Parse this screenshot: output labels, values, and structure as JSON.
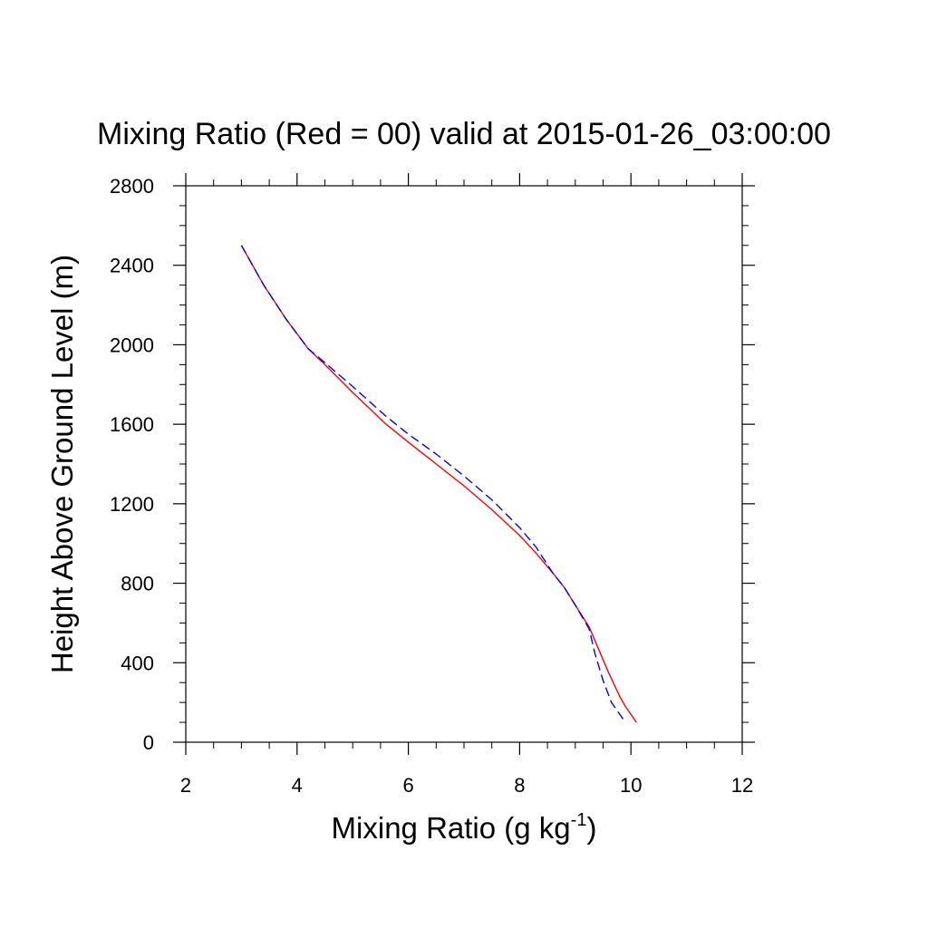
{
  "chart_data": {
    "type": "line",
    "title": "Mixing Ratio (Red = 00) valid at 2015-01-26_03:00:00",
    "xlabel": "Mixing Ratio (g kg",
    "xlabel_superscript": "-1",
    "xlabel_suffix": ")",
    "ylabel": "Height Above Ground Level (m)",
    "xlim": [
      2,
      12
    ],
    "ylim": [
      0,
      2800
    ],
    "x_ticks": [
      2,
      4,
      6,
      8,
      10,
      12
    ],
    "x_tick_labels": [
      "2",
      "4",
      "6",
      "8",
      "10",
      "12"
    ],
    "y_ticks": [
      0,
      400,
      800,
      1200,
      1600,
      2000,
      2400,
      2800
    ],
    "y_tick_labels": [
      "0",
      "400",
      "800",
      "1200",
      "1600",
      "2000",
      "2400",
      "2800"
    ],
    "x_minor_step": 0.5,
    "y_minor_step": 100,
    "grid": false,
    "series": [
      {
        "color": "#ff0000",
        "dash": "solid",
        "points": [
          [
            3.0,
            2500
          ],
          [
            3.4,
            2300
          ],
          [
            3.8,
            2130
          ],
          [
            4.2,
            1980
          ],
          [
            4.5,
            1900
          ],
          [
            5.0,
            1760
          ],
          [
            5.6,
            1600
          ],
          [
            6.0,
            1510
          ],
          [
            6.5,
            1400
          ],
          [
            7.0,
            1290
          ],
          [
            7.5,
            1170
          ],
          [
            8.0,
            1040
          ],
          [
            8.3,
            950
          ],
          [
            8.6,
            850
          ],
          [
            8.8,
            780
          ],
          [
            9.0,
            690
          ],
          [
            9.25,
            580
          ],
          [
            9.4,
            480
          ],
          [
            9.6,
            350
          ],
          [
            9.8,
            230
          ],
          [
            9.9,
            180
          ],
          [
            10.1,
            100
          ]
        ]
      },
      {
        "color": "#0000ff",
        "dash": "dashed",
        "points": [
          [
            3.0,
            2500
          ],
          [
            3.4,
            2300
          ],
          [
            3.8,
            2130
          ],
          [
            4.2,
            1980
          ],
          [
            4.5,
            1910
          ],
          [
            5.0,
            1790
          ],
          [
            5.6,
            1640
          ],
          [
            6.0,
            1550
          ],
          [
            6.5,
            1450
          ],
          [
            7.0,
            1340
          ],
          [
            7.5,
            1220
          ],
          [
            8.0,
            1080
          ],
          [
            8.3,
            980
          ],
          [
            8.6,
            850
          ],
          [
            8.8,
            780
          ],
          [
            9.0,
            690
          ],
          [
            9.25,
            570
          ],
          [
            9.35,
            450
          ],
          [
            9.5,
            310
          ],
          [
            9.65,
            200
          ],
          [
            9.9,
            100
          ]
        ]
      }
    ]
  }
}
